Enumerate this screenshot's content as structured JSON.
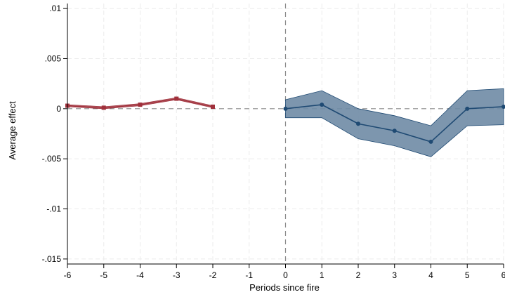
{
  "chart_data": {
    "type": "line",
    "title": "",
    "xlabel": "Periods since fire",
    "ylabel": "Average effect",
    "xlim": [
      -6,
      6
    ],
    "ylim": [
      -0.0155,
      0.0105
    ],
    "x_ticks": [
      -6,
      -5,
      -4,
      -3,
      -2,
      -1,
      0,
      1,
      2,
      3,
      4,
      5,
      6
    ],
    "x_tick_labels": [
      "-6",
      "-5",
      "-4",
      "-3",
      "-2",
      "-1",
      "0",
      "1",
      "2",
      "3",
      "4",
      "5",
      "6"
    ],
    "y_ticks": [
      0.01,
      0.005,
      0,
      -0.005,
      -0.01,
      -0.015
    ],
    "y_tick_labels": [
      ".01",
      ".005",
      "0",
      "-.005",
      "-.01",
      "-.015"
    ],
    "grid": true,
    "reference_lines": {
      "y": 0,
      "x": 0
    },
    "series": [
      {
        "marker": "square",
        "color": "#a0303b",
        "band_color": "#cf9ea4",
        "x": [
          -6,
          -5,
          -4,
          -3,
          -2
        ],
        "values": [
          0.0003,
          0.0001,
          0.0004,
          0.001,
          0.0002
        ],
        "ci_lower": [
          0.0002,
          0.0,
          0.0003,
          0.0009,
          0.0001
        ],
        "ci_upper": [
          0.0004,
          0.0002,
          0.0005,
          0.0011,
          0.0003
        ]
      },
      {
        "marker": "circle",
        "color": "#1f4a73",
        "band_color": "#6f8ba5",
        "x": [
          0,
          1,
          2,
          3,
          4,
          5,
          6
        ],
        "values": [
          0.0,
          0.0004,
          -0.0015,
          -0.0022,
          -0.0033,
          0.0,
          0.0002
        ],
        "ci_lower": [
          -0.0009,
          -0.0009,
          -0.003,
          -0.0037,
          -0.0048,
          -0.0017,
          -0.0016
        ],
        "ci_upper": [
          0.0009,
          0.0018,
          0.0,
          -0.0007,
          -0.0017,
          0.0018,
          0.002
        ]
      }
    ]
  }
}
